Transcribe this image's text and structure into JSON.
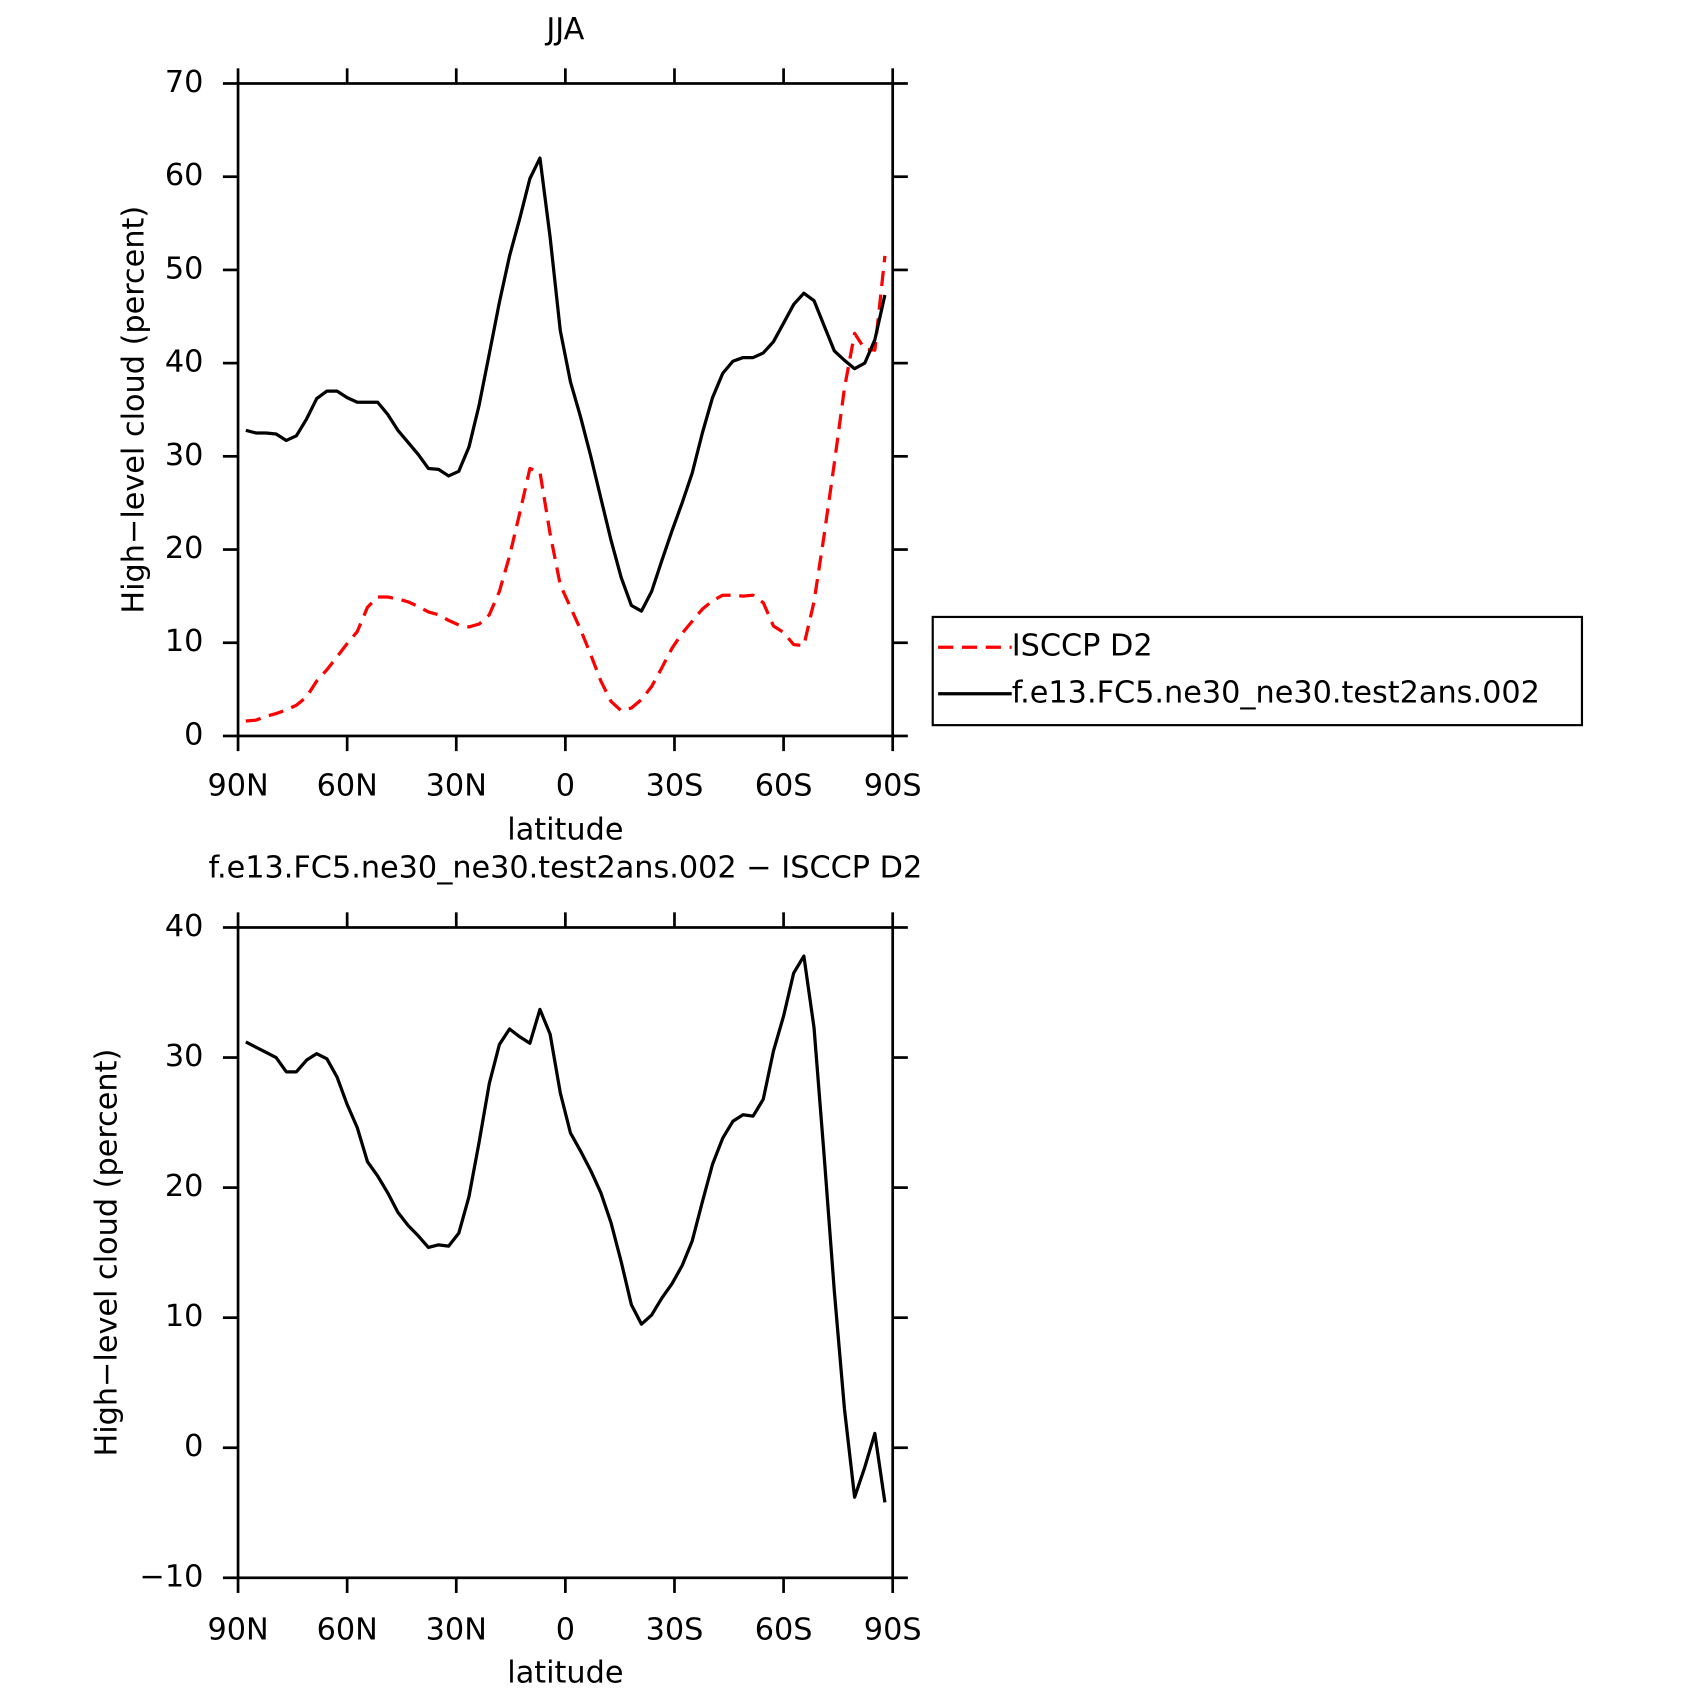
{
  "chart_data": [
    {
      "type": "line",
      "title": "JJA",
      "x_label": "latitude",
      "y_label": "High−level cloud (percent)",
      "x": [
        87.86,
        85.1,
        82.31,
        79.53,
        76.74,
        73.95,
        71.16,
        68.37,
        65.58,
        62.79,
        60.0,
        57.21,
        54.42,
        51.63,
        48.84,
        46.05,
        43.26,
        40.47,
        37.67,
        34.88,
        32.09,
        29.3,
        26.51,
        23.72,
        20.93,
        18.14,
        15.35,
        12.56,
        9.77,
        6.98,
        4.19,
        1.4,
        -1.4,
        -4.19,
        -6.98,
        -9.77,
        -12.56,
        -15.35,
        -18.14,
        -20.93,
        -23.72,
        -26.51,
        -29.3,
        -32.09,
        -34.88,
        -37.67,
        -40.47,
        -43.26,
        -46.05,
        -48.84,
        -51.63,
        -54.42,
        -57.21,
        -60.0,
        -62.79,
        -65.58,
        -68.37,
        -71.16,
        -73.95,
        -76.74,
        -79.53,
        -82.31,
        -85.1,
        -87.86
      ],
      "series": [
        {
          "name": "ISCCP D2",
          "color": "#ff0000",
          "dash": true,
          "values": [
            1.6,
            1.7,
            2.1,
            2.4,
            2.8,
            3.3,
            4.2,
            5.9,
            7.1,
            8.5,
            9.9,
            11.2,
            13.8,
            14.9,
            14.9,
            14.7,
            14.4,
            13.9,
            13.3,
            13.0,
            12.4,
            11.9,
            11.7,
            12.0,
            13.0,
            15.5,
            19.3,
            23.9,
            28.7,
            28.3,
            21.7,
            16.2,
            13.8,
            11.4,
            8.7,
            5.9,
            3.7,
            2.7,
            3.0,
            3.9,
            5.3,
            7.3,
            9.4,
            11.0,
            12.3,
            13.6,
            14.5,
            15.1,
            15.1,
            15.0,
            15.1,
            14.3,
            11.8,
            11.1,
            9.8,
            9.7,
            14.4,
            21.6,
            29.3,
            37.3,
            43.2,
            41.5,
            41.4,
            51.5
          ]
        },
        {
          "name": "f.e13.FC5.ne30_ne30.test2ans.002",
          "color": "#000000",
          "dash": false,
          "values": [
            32.8,
            32.5,
            32.5,
            32.4,
            31.7,
            32.2,
            34.0,
            36.2,
            37.0,
            37.0,
            36.3,
            35.8,
            35.8,
            35.8,
            34.5,
            32.8,
            31.5,
            30.2,
            28.7,
            28.6,
            27.9,
            28.4,
            31.0,
            35.5,
            41.0,
            46.5,
            51.5,
            55.5,
            59.8,
            62.0,
            53.5,
            43.5,
            38.0,
            34.2,
            30.0,
            25.5,
            21.0,
            17.0,
            14.0,
            13.4,
            15.5,
            18.8,
            22.0,
            25.0,
            28.2,
            32.5,
            36.3,
            38.9,
            40.2,
            40.6,
            40.6,
            41.1,
            42.3,
            44.3,
            46.3,
            47.5,
            46.7,
            44.0,
            41.3,
            40.3,
            39.4,
            40.0,
            42.5,
            47.3
          ]
        }
      ],
      "xlim": [
        90,
        -90
      ],
      "xticks": [
        {
          "value": 90,
          "label": "90N"
        },
        {
          "value": 60,
          "label": "60N"
        },
        {
          "value": 30,
          "label": "30N"
        },
        0,
        {
          "value": -30,
          "label": "30S"
        },
        {
          "value": -60,
          "label": "60S"
        },
        {
          "value": -90,
          "label": "90S"
        }
      ],
      "ylim": [
        0,
        70
      ],
      "yticks": [
        0,
        10,
        20,
        30,
        40,
        50,
        60,
        70
      ],
      "legend": "right"
    },
    {
      "type": "line",
      "title": "f.e13.FC5.ne30_ne30.test2ans.002 − ISCCP D2",
      "x_label": "latitude",
      "y_label": "High−level cloud (percent)",
      "x": [
        87.86,
        85.1,
        82.31,
        79.53,
        76.74,
        73.95,
        71.16,
        68.37,
        65.58,
        62.79,
        60.0,
        57.21,
        54.42,
        51.63,
        48.84,
        46.05,
        43.26,
        40.47,
        37.67,
        34.88,
        32.09,
        29.3,
        26.51,
        23.72,
        20.93,
        18.14,
        15.35,
        12.56,
        9.77,
        6.98,
        4.19,
        1.4,
        -1.4,
        -4.19,
        -6.98,
        -9.77,
        -12.56,
        -15.35,
        -18.14,
        -20.93,
        -23.72,
        -26.51,
        -29.3,
        -32.09,
        -34.88,
        -37.67,
        -40.47,
        -43.26,
        -46.05,
        -48.84,
        -51.63,
        -54.42,
        -57.21,
        -60.0,
        -62.79,
        -65.58,
        -68.37,
        -71.16,
        -73.95,
        -76.74,
        -79.53,
        -82.31,
        -85.1,
        -87.86
      ],
      "color": "#000000",
      "values": [
        31.2,
        30.8,
        30.4,
        30.0,
        28.9,
        28.9,
        29.8,
        30.3,
        29.9,
        28.5,
        26.4,
        24.6,
        22.0,
        20.9,
        19.6,
        18.1,
        17.1,
        16.3,
        15.4,
        15.6,
        15.5,
        16.5,
        19.3,
        23.5,
        28.0,
        31.0,
        32.2,
        31.6,
        31.1,
        33.7,
        31.8,
        27.3,
        24.2,
        22.8,
        21.3,
        19.6,
        17.3,
        14.3,
        11.0,
        9.5,
        10.2,
        11.5,
        12.6,
        14.0,
        15.9,
        18.9,
        21.8,
        23.8,
        25.1,
        25.6,
        25.5,
        26.8,
        30.5,
        33.2,
        36.5,
        37.8,
        32.3,
        22.4,
        12.0,
        3.0,
        -3.8,
        -1.5,
        1.1,
        -4.2
      ],
      "xlim": [
        90,
        -90
      ],
      "xticks": [
        {
          "value": 90,
          "label": "90N"
        },
        {
          "value": 60,
          "label": "60N"
        },
        {
          "value": 30,
          "label": "30N"
        },
        0,
        {
          "value": -30,
          "label": "30S"
        },
        {
          "value": -60,
          "label": "60S"
        },
        {
          "value": -90,
          "label": "90S"
        }
      ],
      "ylim": [
        -10,
        40
      ],
      "yticks": [
        {
          "value": -10,
          "label": "−10"
        },
        0,
        10,
        20,
        30,
        40
      ]
    }
  ]
}
